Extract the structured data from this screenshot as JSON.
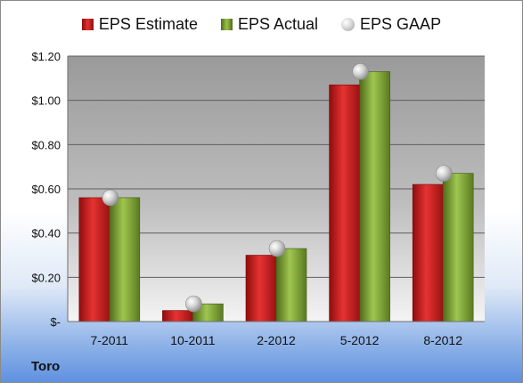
{
  "company": "Toro",
  "legend": [
    {
      "label": "EPS Estimate",
      "color": "#d42020"
    },
    {
      "label": "EPS Actual",
      "color": "#7fa030"
    },
    {
      "label": "EPS GAAP",
      "color": "#bdbdbd"
    }
  ],
  "chart_data": {
    "type": "bar",
    "categories": [
      "7-2011",
      "10-2011",
      "2-2012",
      "5-2012",
      "8-2012"
    ],
    "series": [
      {
        "name": "EPS Estimate",
        "type": "bar",
        "values": [
          0.56,
          0.05,
          0.3,
          1.07,
          0.62
        ]
      },
      {
        "name": "EPS Actual",
        "type": "bar",
        "values": [
          0.56,
          0.08,
          0.33,
          1.13,
          0.67
        ]
      },
      {
        "name": "EPS GAAP",
        "type": "marker",
        "values": [
          0.56,
          0.08,
          0.33,
          1.13,
          0.67
        ]
      }
    ],
    "ylim": [
      0,
      1.2
    ],
    "yticks": [
      0,
      0.2,
      0.4,
      0.6,
      0.8,
      1.0,
      1.2
    ],
    "ytick_labels": [
      "$-",
      "$0.20",
      "$0.40",
      "$0.60",
      "$0.80",
      "$1.00",
      "$1.20"
    ],
    "grid": true,
    "legend_position": "top"
  }
}
